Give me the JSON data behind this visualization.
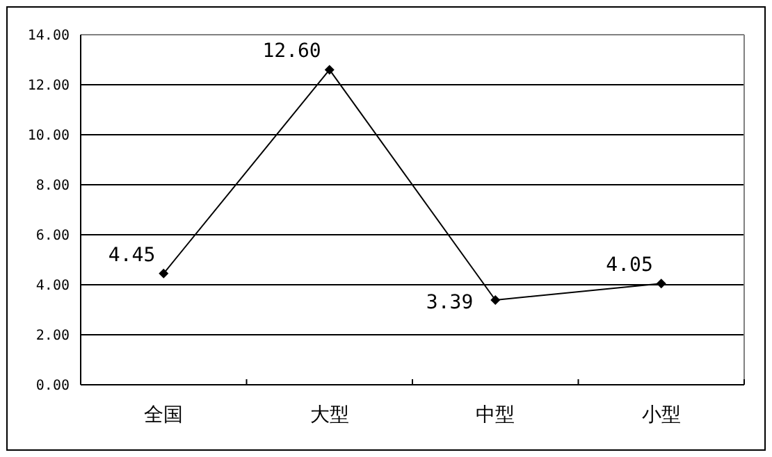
{
  "chart_data": {
    "type": "line",
    "categories": [
      "全国",
      "大型",
      "中型",
      "小型"
    ],
    "series": [
      {
        "color": "#000000",
        "values": [
          4.45,
          12.6,
          3.39,
          4.05
        ],
        "value_labels": [
          "4.45",
          "12.60",
          "3.39",
          "4.05"
        ]
      }
    ],
    "ylim": [
      0,
      14
    ],
    "yticks": [
      {
        "value": 0,
        "label": "0.00"
      },
      {
        "value": 2,
        "label": "2.00"
      },
      {
        "value": 4,
        "label": "4.00"
      },
      {
        "value": 6,
        "label": "6.00"
      },
      {
        "value": 8,
        "label": "8.00"
      },
      {
        "value": 10,
        "label": "10.00"
      },
      {
        "value": 12,
        "label": "12.00"
      },
      {
        "value": 14,
        "label": "14.00"
      }
    ],
    "grid": "y",
    "marker": "diamond",
    "line_style": "solid"
  }
}
